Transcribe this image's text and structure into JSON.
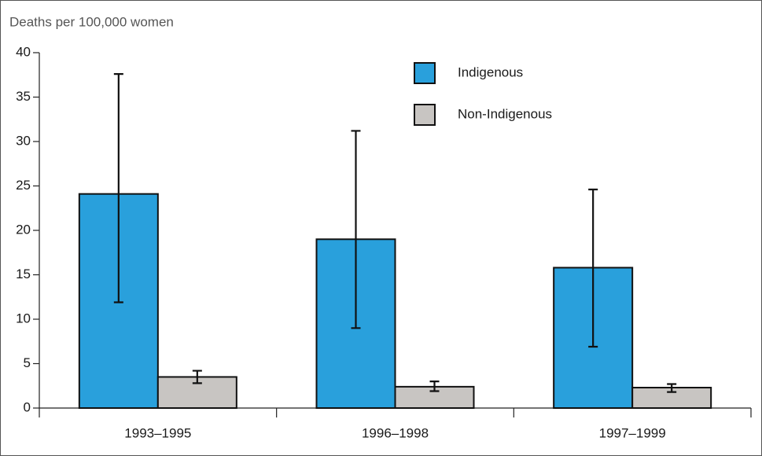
{
  "chart_data": {
    "type": "bar",
    "title": "Deaths per 100,000 women",
    "categories": [
      "1993–1995",
      "1996–1998",
      "1997–1999"
    ],
    "series": [
      {
        "name": "Indigenous",
        "color": "#29a0dc",
        "values": [
          24.1,
          19.0,
          15.8
        ],
        "lower": [
          11.9,
          9.0,
          6.9
        ],
        "upper": [
          37.6,
          31.2,
          24.6
        ]
      },
      {
        "name": "Non-Indigenous",
        "color": "#c8c5c2",
        "values": [
          3.5,
          2.4,
          2.3
        ],
        "lower": [
          2.8,
          1.9,
          1.8
        ],
        "upper": [
          4.2,
          3.0,
          2.7
        ]
      }
    ],
    "ylim": [
      0,
      40
    ],
    "yticks": [
      0,
      5,
      10,
      15,
      20,
      25,
      30,
      35,
      40
    ],
    "grid": false,
    "legend": "top-right"
  }
}
